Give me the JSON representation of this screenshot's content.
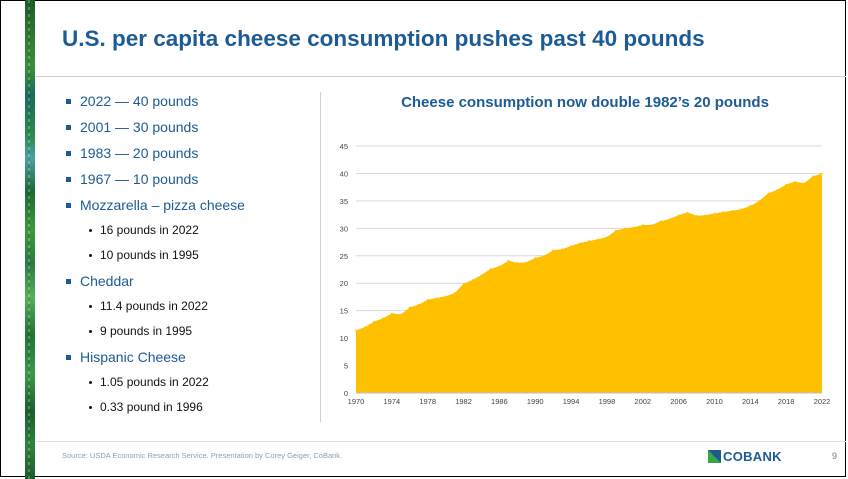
{
  "slide": {
    "title": "U.S. per capita cheese consumption pushes past 40 pounds",
    "bullets": [
      {
        "text": "2022 — 40 pounds",
        "level": 1
      },
      {
        "text": "2001 — 30 pounds",
        "level": 1
      },
      {
        "text": "1983 — 20 pounds",
        "level": 1
      },
      {
        "text": "1967 — 10 pounds",
        "level": 1
      },
      {
        "text": "Mozzarella – pizza cheese",
        "level": 1
      },
      {
        "text": "16 pounds in 2022",
        "level": 2
      },
      {
        "text": "10 pounds in 1995",
        "level": 2
      },
      {
        "text": "Cheddar",
        "level": 1
      },
      {
        "text": "11.4 pounds in 2022",
        "level": 2
      },
      {
        "text": "9 pounds in 1995",
        "level": 2
      },
      {
        "text": "Hispanic Cheese",
        "level": 1
      },
      {
        "text": "1.05 pounds in 2022",
        "level": 2
      },
      {
        "text": "0.33 pound in 1996",
        "level": 2
      }
    ],
    "source": "Source: USDA Economic Research Service. Presentation by Corey Geiger, CoBank.",
    "logo_text": "COBANK",
    "page_number": "9"
  },
  "chart_data": {
    "type": "area",
    "title": "Cheese consumption now double 1982’s 20 pounds",
    "xlabel": "",
    "ylabel": "",
    "x": [
      1970,
      1971,
      1972,
      1973,
      1974,
      1975,
      1976,
      1977,
      1978,
      1979,
      1980,
      1981,
      1982,
      1983,
      1984,
      1985,
      1986,
      1987,
      1988,
      1989,
      1990,
      1991,
      1992,
      1993,
      1994,
      1995,
      1996,
      1997,
      1998,
      1999,
      2000,
      2001,
      2002,
      2003,
      2004,
      2005,
      2006,
      2007,
      2008,
      2009,
      2010,
      2011,
      2012,
      2013,
      2014,
      2015,
      2016,
      2017,
      2018,
      2019,
      2020,
      2021,
      2022
    ],
    "values": [
      11.4,
      12.0,
      13.0,
      13.6,
      14.5,
      14.3,
      15.6,
      16.1,
      17.0,
      17.3,
      17.6,
      18.2,
      19.9,
      20.6,
      21.5,
      22.6,
      23.1,
      24.1,
      23.7,
      23.8,
      24.6,
      25.0,
      26.0,
      26.2,
      26.8,
      27.3,
      27.7,
      28.0,
      28.4,
      29.6,
      30.0,
      30.2,
      30.6,
      30.6,
      31.3,
      31.7,
      32.4,
      32.9,
      32.3,
      32.4,
      32.7,
      33.0,
      33.2,
      33.5,
      34.1,
      35.0,
      36.4,
      37.0,
      38.0,
      38.5,
      38.2,
      39.5,
      40.0
    ],
    "x_tick_labels": [
      "1970",
      "1974",
      "1978",
      "1982",
      "1986",
      "1990",
      "1994",
      "1998",
      "2002",
      "2006",
      "2010",
      "2014",
      "2018",
      "2022"
    ],
    "y_ticks": [
      0,
      5,
      10,
      15,
      20,
      25,
      30,
      35,
      40,
      45
    ],
    "ylim": [
      0,
      45
    ],
    "xlim": [
      1970,
      2022
    ],
    "fill_color": "#FFC000",
    "grid": true,
    "legend": "none"
  }
}
